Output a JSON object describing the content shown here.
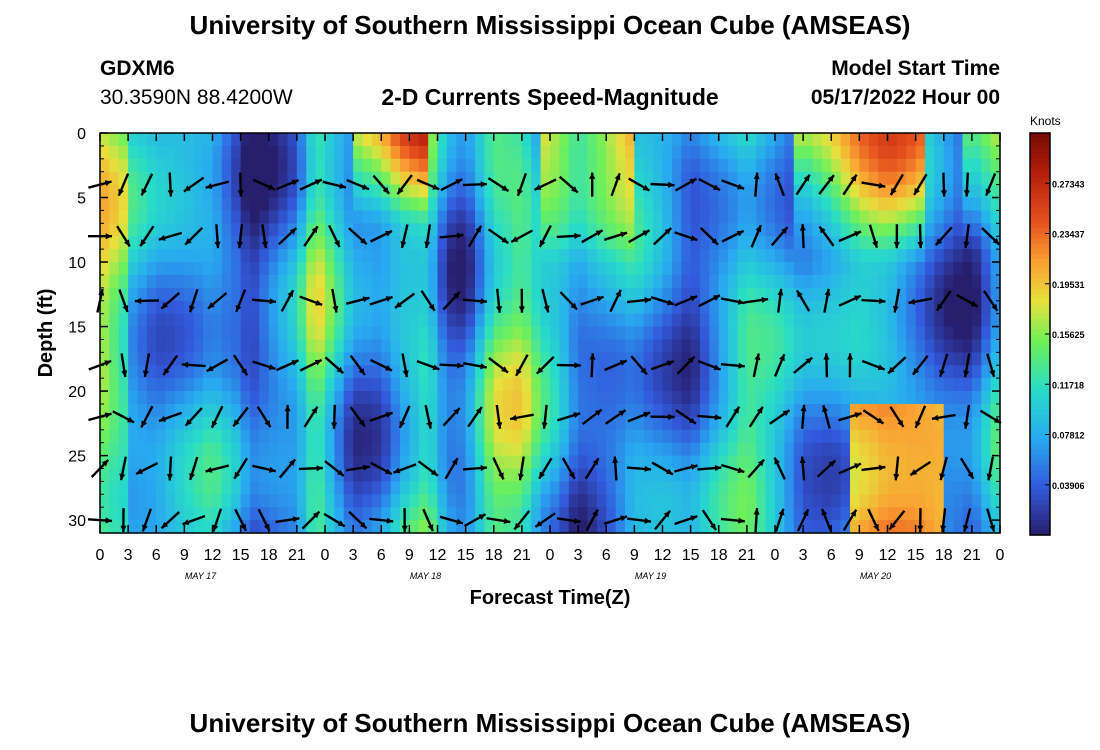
{
  "header": {
    "title": "University of Southern Mississippi Ocean Cube (AMSEAS)",
    "station_name": "GDXM6",
    "station_coords": "30.3590N  88.4200W",
    "subtitle": "2-D Currents Speed-Magnitude",
    "model_start_label": "Model Start Time",
    "model_start_value": "05/17/2022 Hour 00"
  },
  "footer": {
    "title": "University of Southern Mississippi Ocean Cube (AMSEAS)"
  },
  "chart_data": {
    "type": "heatmap",
    "title": "2-D Currents Speed-Magnitude",
    "xlabel": "Forecast Time(Z)",
    "ylabel": "Depth (ft)",
    "x_range_hours": [
      0,
      96
    ],
    "y_range_ft": [
      0,
      31
    ],
    "y_ticks": [
      "0",
      "5",
      "10",
      "15",
      "20",
      "25",
      "30"
    ],
    "x_ticks": [
      "0",
      "3",
      "6",
      "9",
      "12",
      "15",
      "18",
      "21",
      "0",
      "3",
      "6",
      "9",
      "12",
      "15",
      "18",
      "21",
      "0",
      "3",
      "6",
      "9",
      "12",
      "15",
      "18",
      "21",
      "0",
      "3",
      "6",
      "9",
      "12",
      "15",
      "18",
      "21",
      "0"
    ],
    "day_labels": [
      "MAY 17",
      "MAY 18",
      "MAY 19",
      "MAY 20"
    ],
    "colorbar": {
      "unit": "Knots",
      "ticks": [
        "0.27343",
        "0.23437",
        "0.19531",
        "0.15625",
        "0.11718",
        "0.07812",
        "0.03906"
      ],
      "range": [
        0,
        0.3125
      ]
    },
    "speed_profile_by_hour": [
      [
        0,
        0.13
      ],
      [
        3,
        0.09
      ],
      [
        6,
        0.07
      ],
      [
        9,
        0.08
      ],
      [
        12,
        0.09
      ],
      [
        15,
        0.05
      ],
      [
        16,
        0.02
      ],
      [
        19,
        0.05
      ],
      [
        21,
        0.07
      ],
      [
        23,
        0.15
      ],
      [
        25,
        0.1
      ],
      [
        27,
        0.05
      ],
      [
        30,
        0.06
      ],
      [
        32,
        0.1
      ],
      [
        35,
        0.13
      ],
      [
        37,
        0.05
      ],
      [
        39,
        0.04
      ],
      [
        42,
        0.14
      ],
      [
        45,
        0.15
      ],
      [
        47,
        0.1
      ],
      [
        49,
        0.08
      ],
      [
        51,
        0.04
      ],
      [
        54,
        0.06
      ],
      [
        57,
        0.09
      ],
      [
        60,
        0.07
      ],
      [
        63,
        0.04
      ],
      [
        66,
        0.08
      ],
      [
        69,
        0.12
      ],
      [
        72,
        0.09
      ],
      [
        75,
        0.05
      ],
      [
        78,
        0.06
      ],
      [
        81,
        0.09
      ],
      [
        84,
        0.1
      ],
      [
        87,
        0.08
      ],
      [
        90,
        0.05
      ],
      [
        93,
        0.03
      ],
      [
        96,
        0.1
      ]
    ],
    "arrow_hours": [
      0,
      2.5,
      5,
      7.5,
      10,
      12.5,
      15,
      17.5,
      20,
      22.5,
      25,
      27.5,
      30,
      32.5,
      35,
      37.5,
      40,
      42.5,
      45,
      47.5,
      50,
      52.5,
      55,
      57.5,
      60,
      62.5,
      65,
      67.5,
      70,
      72.5,
      75,
      77.5,
      80,
      82.5,
      85,
      87.5,
      90,
      92.5,
      95
    ],
    "arrow_depths_ft": [
      4,
      8,
      13,
      18,
      22,
      26,
      30
    ],
    "arrow_direction_deg_by_hour": [
      [
        0,
        60
      ],
      [
        4,
        220
      ],
      [
        8,
        225
      ],
      [
        12,
        230
      ],
      [
        16,
        175
      ],
      [
        20,
        40
      ],
      [
        23,
        70
      ],
      [
        26,
        190
      ],
      [
        29,
        45
      ],
      [
        33,
        230
      ],
      [
        37,
        60
      ],
      [
        41,
        75
      ],
      [
        44,
        220
      ],
      [
        48,
        200
      ],
      [
        51,
        60
      ],
      [
        54,
        20
      ],
      [
        57,
        95
      ],
      [
        60,
        85
      ],
      [
        63,
        80
      ],
      [
        66,
        110
      ],
      [
        70,
        35
      ],
      [
        74,
        10
      ],
      [
        78,
        0
      ],
      [
        82,
        100
      ],
      [
        86,
        220
      ],
      [
        90,
        215
      ],
      [
        93,
        160
      ],
      [
        96,
        150
      ]
    ]
  }
}
